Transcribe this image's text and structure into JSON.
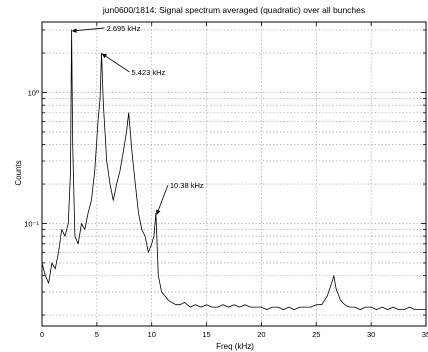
{
  "chart_data": {
    "type": "line",
    "title": "jun0600/1814: Signal spectrum averaged (quadratic) over all bunches",
    "xlabel": "Freq (kHz)",
    "ylabel": "Counts",
    "xlim": [
      0,
      35
    ],
    "ylim": [
      0.0165,
      3.45
    ],
    "yscale": "log",
    "grid": true,
    "x_ticks": [
      0,
      5,
      10,
      15,
      20,
      25,
      30,
      35
    ],
    "x_tick_labels": [
      "0",
      "5",
      "10",
      "15",
      "20",
      "25",
      "30",
      "35"
    ],
    "y_major_ticks": [
      0.1,
      1
    ],
    "y_tick_labels": [
      "10⁻¹",
      "10⁰"
    ],
    "series": [
      {
        "color": "#000000",
        "x": [
          0.0,
          0.3,
          0.6,
          0.9,
          1.2,
          1.5,
          1.8,
          2.1,
          2.4,
          2.6,
          2.695,
          2.8,
          3.0,
          3.3,
          3.6,
          3.9,
          4.2,
          4.5,
          4.8,
          5.1,
          5.3,
          5.423,
          5.6,
          5.9,
          6.2,
          6.5,
          6.8,
          7.1,
          7.4,
          7.7,
          7.9,
          8.2,
          8.5,
          8.8,
          9.1,
          9.4,
          9.7,
          10.0,
          10.2,
          10.38,
          10.6,
          10.9,
          11.2,
          11.5,
          11.8,
          12.2,
          12.6,
          13.0,
          13.5,
          14.0,
          14.5,
          15.0,
          15.5,
          16.0,
          16.5,
          17.0,
          17.5,
          18.0,
          18.5,
          19.0,
          19.5,
          20.0,
          20.5,
          21.0,
          21.5,
          22.0,
          22.5,
          23.0,
          23.5,
          24.0,
          24.5,
          25.0,
          25.5,
          26.0,
          26.4,
          26.6,
          26.8,
          27.2,
          27.6,
          28.0,
          28.5,
          29.0,
          29.5,
          30.0,
          30.5,
          31.0,
          31.5,
          32.0,
          32.5,
          33.0,
          33.5,
          34.0,
          34.5,
          35.0
        ],
        "y": [
          0.05,
          0.04,
          0.035,
          0.05,
          0.045,
          0.06,
          0.09,
          0.08,
          0.1,
          0.25,
          3.0,
          0.4,
          0.08,
          0.07,
          0.1,
          0.09,
          0.12,
          0.15,
          0.25,
          0.6,
          0.9,
          2.0,
          0.8,
          0.3,
          0.2,
          0.15,
          0.2,
          0.25,
          0.35,
          0.5,
          0.7,
          0.35,
          0.2,
          0.12,
          0.09,
          0.08,
          0.06,
          0.07,
          0.08,
          0.12,
          0.04,
          0.03,
          0.028,
          0.026,
          0.025,
          0.024,
          0.024,
          0.025,
          0.023,
          0.024,
          0.023,
          0.024,
          0.023,
          0.023,
          0.024,
          0.023,
          0.024,
          0.023,
          0.024,
          0.023,
          0.023,
          0.023,
          0.022,
          0.023,
          0.023,
          0.022,
          0.023,
          0.022,
          0.023,
          0.023,
          0.023,
          0.024,
          0.024,
          0.028,
          0.035,
          0.04,
          0.032,
          0.026,
          0.024,
          0.023,
          0.023,
          0.022,
          0.023,
          0.023,
          0.022,
          0.023,
          0.022,
          0.023,
          0.022,
          0.022,
          0.023,
          0.022,
          0.022,
          0.022
        ]
      }
    ],
    "annotations": [
      {
        "text": "2.695 kHz",
        "x": 2.695,
        "y": 3.0
      },
      {
        "text": "5.423 kHz",
        "x": 5.423,
        "y": 2.0
      },
      {
        "text": "10.38 kHz",
        "x": 10.38,
        "y": 0.12
      }
    ]
  }
}
